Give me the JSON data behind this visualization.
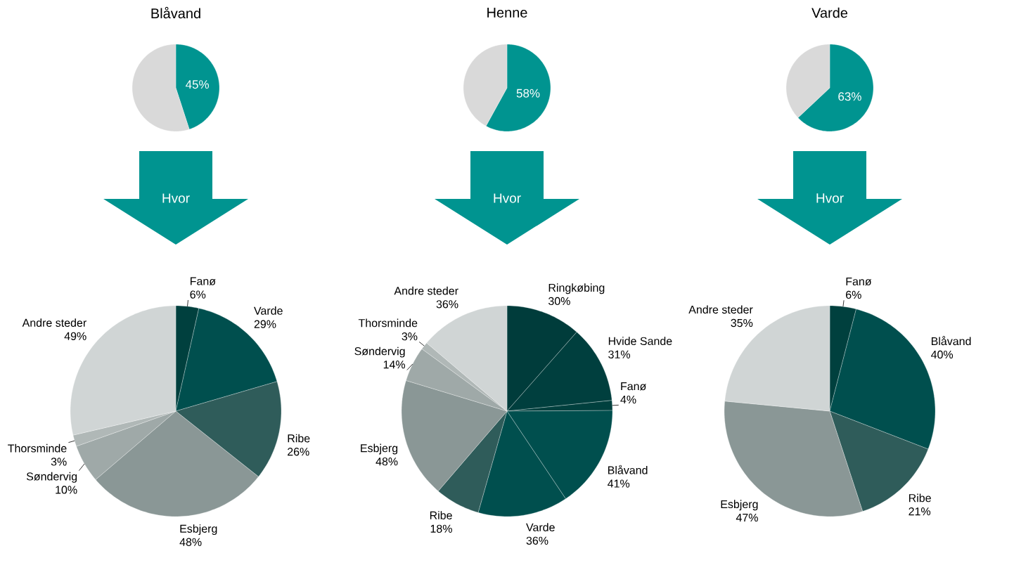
{
  "chart_data": [
    {
      "type": "pie",
      "title": "Blåvand",
      "categories": [
        null,
        null
      ],
      "values": [
        45,
        55
      ],
      "colors": [
        "#009490",
        "#d9d9d9"
      ],
      "value_labels": [
        "45%",
        null
      ]
    },
    {
      "type": "pie",
      "title": "Henne",
      "categories": [
        null,
        null
      ],
      "values": [
        58,
        42
      ],
      "colors": [
        "#009490",
        "#d9d9d9"
      ],
      "value_labels": [
        "58%",
        null
      ]
    },
    {
      "type": "pie",
      "title": "Varde",
      "categories": [
        null,
        null
      ],
      "values": [
        63,
        37
      ],
      "colors": [
        "#009490",
        "#d9d9d9"
      ],
      "value_labels": [
        "63%",
        null
      ]
    },
    {
      "type": "pie",
      "annotations": [
        "Hvor"
      ],
      "categories": [
        "Fanø",
        "Varde",
        "Ribe",
        "Esbjerg",
        "Søndervig",
        "Thorsminde",
        "Andre steder"
      ],
      "values": [
        6,
        29,
        26,
        48,
        10,
        3,
        49
      ],
      "colors": [
        "#00403e",
        "#004f4e",
        "#2f5c5a",
        "#8a9796",
        "#9fa9a8",
        "#b0b8b7",
        "#d0d5d5"
      ],
      "value_labels": [
        "6%",
        "29%",
        "26%",
        "48%",
        "10%",
        "3%",
        "49%"
      ]
    },
    {
      "type": "pie",
      "annotations": [
        "Hvor"
      ],
      "categories": [
        "Ringkøbing",
        "Hvide Sande",
        "Fanø",
        "Blåvand",
        "Varde",
        "Ribe",
        "Esbjerg",
        "Søndervig",
        "Thorsminde",
        "Andre steder"
      ],
      "values": [
        30,
        31,
        4,
        41,
        36,
        18,
        48,
        14,
        3,
        36
      ],
      "colors": [
        "#003c3b",
        "#003f3e",
        "#00403e",
        "#004f4e",
        "#004f4e",
        "#2f5c5a",
        "#8a9796",
        "#9fa9a8",
        "#b0b8b7",
        "#d0d5d5"
      ],
      "value_labels": [
        "30%",
        "31%",
        "4%",
        "41%",
        "36%",
        "18%",
        "48%",
        "14%",
        "3%",
        "36%"
      ]
    },
    {
      "type": "pie",
      "annotations": [
        "Hvor"
      ],
      "categories": [
        "Fanø",
        "Blåvand",
        "Ribe",
        "Esbjerg",
        "Andre steder"
      ],
      "values": [
        6,
        40,
        21,
        47,
        35
      ],
      "colors": [
        "#00403e",
        "#004f4e",
        "#2f5c5a",
        "#8a9796",
        "#d0d5d5"
      ],
      "value_labels": [
        "6%",
        "40%",
        "21%",
        "47%",
        "35%"
      ]
    }
  ]
}
